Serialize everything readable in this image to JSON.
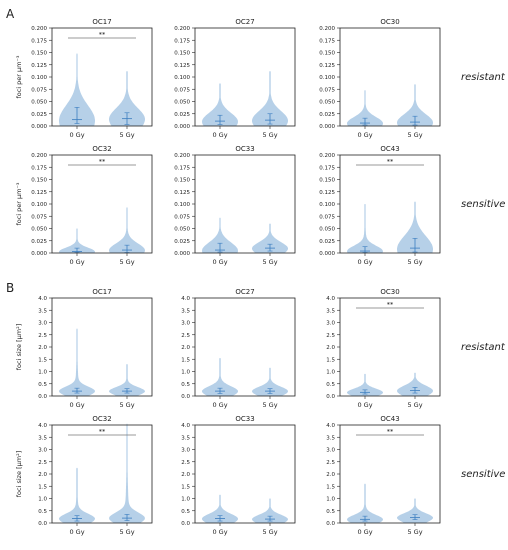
{
  "panel_labels": [
    "A",
    "B"
  ],
  "row_labels": {
    "resistant": "resistant",
    "sensitive": "sensitive"
  },
  "colors": {
    "violin_fill": "#aecbe6",
    "violin_line": "#3b7dbf",
    "bracket": "#777777",
    "axis": "#222222"
  },
  "chart_data": [
    {
      "type": "violin",
      "panel": "A",
      "title": "OC17",
      "ylabel": "foci per µm⁻³",
      "ylim": [
        0,
        0.2
      ],
      "yticks": [
        "0.000",
        "0.025",
        "0.050",
        "0.075",
        "0.100",
        "0.125",
        "0.150",
        "0.175",
        "0.200"
      ],
      "categories": [
        "0 Gy",
        "5 Gy"
      ],
      "violins": [
        {
          "median": 0.013,
          "q1": 0.005,
          "q3": 0.038,
          "max": 0.148
        },
        {
          "median": 0.015,
          "q1": 0.003,
          "q3": 0.027,
          "max": 0.112
        }
      ],
      "significance": "**"
    },
    {
      "type": "violin",
      "panel": "A",
      "title": "OC27",
      "ylabel": "",
      "ylim": [
        0,
        0.2
      ],
      "yticks": [
        "0.000",
        "0.025",
        "0.050",
        "0.075",
        "0.100",
        "0.125",
        "0.150",
        "0.175",
        "0.200"
      ],
      "categories": [
        "0 Gy",
        "5 Gy"
      ],
      "violins": [
        {
          "median": 0.01,
          "q1": 0.003,
          "q3": 0.022,
          "max": 0.087
        },
        {
          "median": 0.012,
          "q1": 0.004,
          "q3": 0.025,
          "max": 0.112
        }
      ],
      "significance": ""
    },
    {
      "type": "violin",
      "panel": "A",
      "title": "OC30",
      "ylabel": "",
      "ylim": [
        0,
        0.2
      ],
      "yticks": [
        "0.000",
        "0.025",
        "0.050",
        "0.075",
        "0.100",
        "0.125",
        "0.150",
        "0.175",
        "0.200"
      ],
      "categories": [
        "0 Gy",
        "5 Gy"
      ],
      "violins": [
        {
          "median": 0.006,
          "q1": 0.002,
          "q3": 0.016,
          "max": 0.073
        },
        {
          "median": 0.008,
          "q1": 0.002,
          "q3": 0.02,
          "max": 0.085
        }
      ],
      "significance": ""
    },
    {
      "type": "violin",
      "panel": "A",
      "title": "OC32",
      "ylabel": "foci per µm⁻³",
      "ylim": [
        0,
        0.2
      ],
      "yticks": [
        "0.000",
        "0.025",
        "0.050",
        "0.075",
        "0.100",
        "0.125",
        "0.150",
        "0.175",
        "0.200"
      ],
      "categories": [
        "0 Gy",
        "5 Gy"
      ],
      "violins": [
        {
          "median": 0.003,
          "q1": 0.001,
          "q3": 0.01,
          "max": 0.05
        },
        {
          "median": 0.006,
          "q1": 0.001,
          "q3": 0.016,
          "max": 0.093
        }
      ],
      "significance": "**"
    },
    {
      "type": "violin",
      "panel": "A",
      "title": "OC33",
      "ylabel": "",
      "ylim": [
        0,
        0.2
      ],
      "yticks": [
        "0.000",
        "0.025",
        "0.050",
        "0.075",
        "0.100",
        "0.125",
        "0.150",
        "0.175",
        "0.200"
      ],
      "categories": [
        "0 Gy",
        "5 Gy"
      ],
      "violins": [
        {
          "median": 0.006,
          "q1": 0.002,
          "q3": 0.02,
          "max": 0.072
        },
        {
          "median": 0.01,
          "q1": 0.004,
          "q3": 0.018,
          "max": 0.06
        }
      ],
      "significance": ""
    },
    {
      "type": "violin",
      "panel": "A",
      "title": "OC43",
      "ylabel": "",
      "ylim": [
        0,
        0.2
      ],
      "yticks": [
        "0.000",
        "0.025",
        "0.050",
        "0.075",
        "0.100",
        "0.125",
        "0.150",
        "0.175",
        "0.200"
      ],
      "categories": [
        "0 Gy",
        "5 Gy"
      ],
      "violins": [
        {
          "median": 0.004,
          "q1": 0.001,
          "q3": 0.013,
          "max": 0.1
        },
        {
          "median": 0.01,
          "q1": 0.002,
          "q3": 0.03,
          "max": 0.105
        }
      ],
      "significance": "**"
    },
    {
      "type": "violin",
      "panel": "B",
      "title": "OC17",
      "ylabel": "foci size [µm²]",
      "ylim": [
        0,
        4.0
      ],
      "yticks": [
        "0.0",
        "0.5",
        "1.0",
        "1.5",
        "2.0",
        "2.5",
        "3.0",
        "3.5",
        "4.0"
      ],
      "categories": [
        "0 Gy",
        "5 Gy"
      ],
      "violins": [
        {
          "median": 0.2,
          "q1": 0.12,
          "q3": 0.32,
          "max": 2.75
        },
        {
          "median": 0.2,
          "q1": 0.12,
          "q3": 0.3,
          "max": 1.3
        }
      ],
      "significance": ""
    },
    {
      "type": "violin",
      "panel": "B",
      "title": "OC27",
      "ylabel": "",
      "ylim": [
        0,
        4.0
      ],
      "yticks": [
        "0.0",
        "0.5",
        "1.0",
        "1.5",
        "2.0",
        "2.5",
        "3.0",
        "3.5",
        "4.0"
      ],
      "categories": [
        "0 Gy",
        "5 Gy"
      ],
      "violins": [
        {
          "median": 0.2,
          "q1": 0.1,
          "q3": 0.32,
          "max": 1.55
        },
        {
          "median": 0.2,
          "q1": 0.1,
          "q3": 0.3,
          "max": 1.15
        }
      ],
      "significance": ""
    },
    {
      "type": "violin",
      "panel": "B",
      "title": "OC30",
      "ylabel": "",
      "ylim": [
        0,
        4.0
      ],
      "yticks": [
        "0.0",
        "0.5",
        "1.0",
        "1.5",
        "2.0",
        "2.5",
        "3.0",
        "3.5",
        "4.0"
      ],
      "categories": [
        "0 Gy",
        "5 Gy"
      ],
      "violins": [
        {
          "median": 0.15,
          "q1": 0.08,
          "q3": 0.25,
          "max": 0.9
        },
        {
          "median": 0.22,
          "q1": 0.12,
          "q3": 0.35,
          "max": 0.95
        }
      ],
      "significance": "**"
    },
    {
      "type": "violin",
      "panel": "B",
      "title": "OC32",
      "ylabel": "foci size [µm²]",
      "ylim": [
        0,
        4.0
      ],
      "yticks": [
        "0.0",
        "0.5",
        "1.0",
        "1.5",
        "2.0",
        "2.5",
        "3.0",
        "3.5",
        "4.0"
      ],
      "categories": [
        "0 Gy",
        "5 Gy"
      ],
      "violins": [
        {
          "median": 0.18,
          "q1": 0.08,
          "q3": 0.3,
          "max": 2.25
        },
        {
          "median": 0.2,
          "q1": 0.1,
          "q3": 0.35,
          "max": 4.05
        }
      ],
      "significance": "**"
    },
    {
      "type": "violin",
      "panel": "B",
      "title": "OC33",
      "ylabel": "",
      "ylim": [
        0,
        4.0
      ],
      "yticks": [
        "0.0",
        "0.5",
        "1.0",
        "1.5",
        "2.0",
        "2.5",
        "3.0",
        "3.5",
        "4.0"
      ],
      "categories": [
        "0 Gy",
        "5 Gy"
      ],
      "violins": [
        {
          "median": 0.18,
          "q1": 0.08,
          "q3": 0.3,
          "max": 1.15
        },
        {
          "median": 0.16,
          "q1": 0.08,
          "q3": 0.28,
          "max": 1.0
        }
      ],
      "significance": ""
    },
    {
      "type": "violin",
      "panel": "B",
      "title": "OC43",
      "ylabel": "",
      "ylim": [
        0,
        4.0
      ],
      "yticks": [
        "0.0",
        "0.5",
        "1.0",
        "1.5",
        "2.0",
        "2.5",
        "3.0",
        "3.5",
        "4.0"
      ],
      "categories": [
        "0 Gy",
        "5 Gy"
      ],
      "violins": [
        {
          "median": 0.15,
          "q1": 0.08,
          "q3": 0.28,
          "max": 1.6
        },
        {
          "median": 0.22,
          "q1": 0.14,
          "q3": 0.34,
          "max": 1.0
        }
      ],
      "significance": "**"
    }
  ]
}
